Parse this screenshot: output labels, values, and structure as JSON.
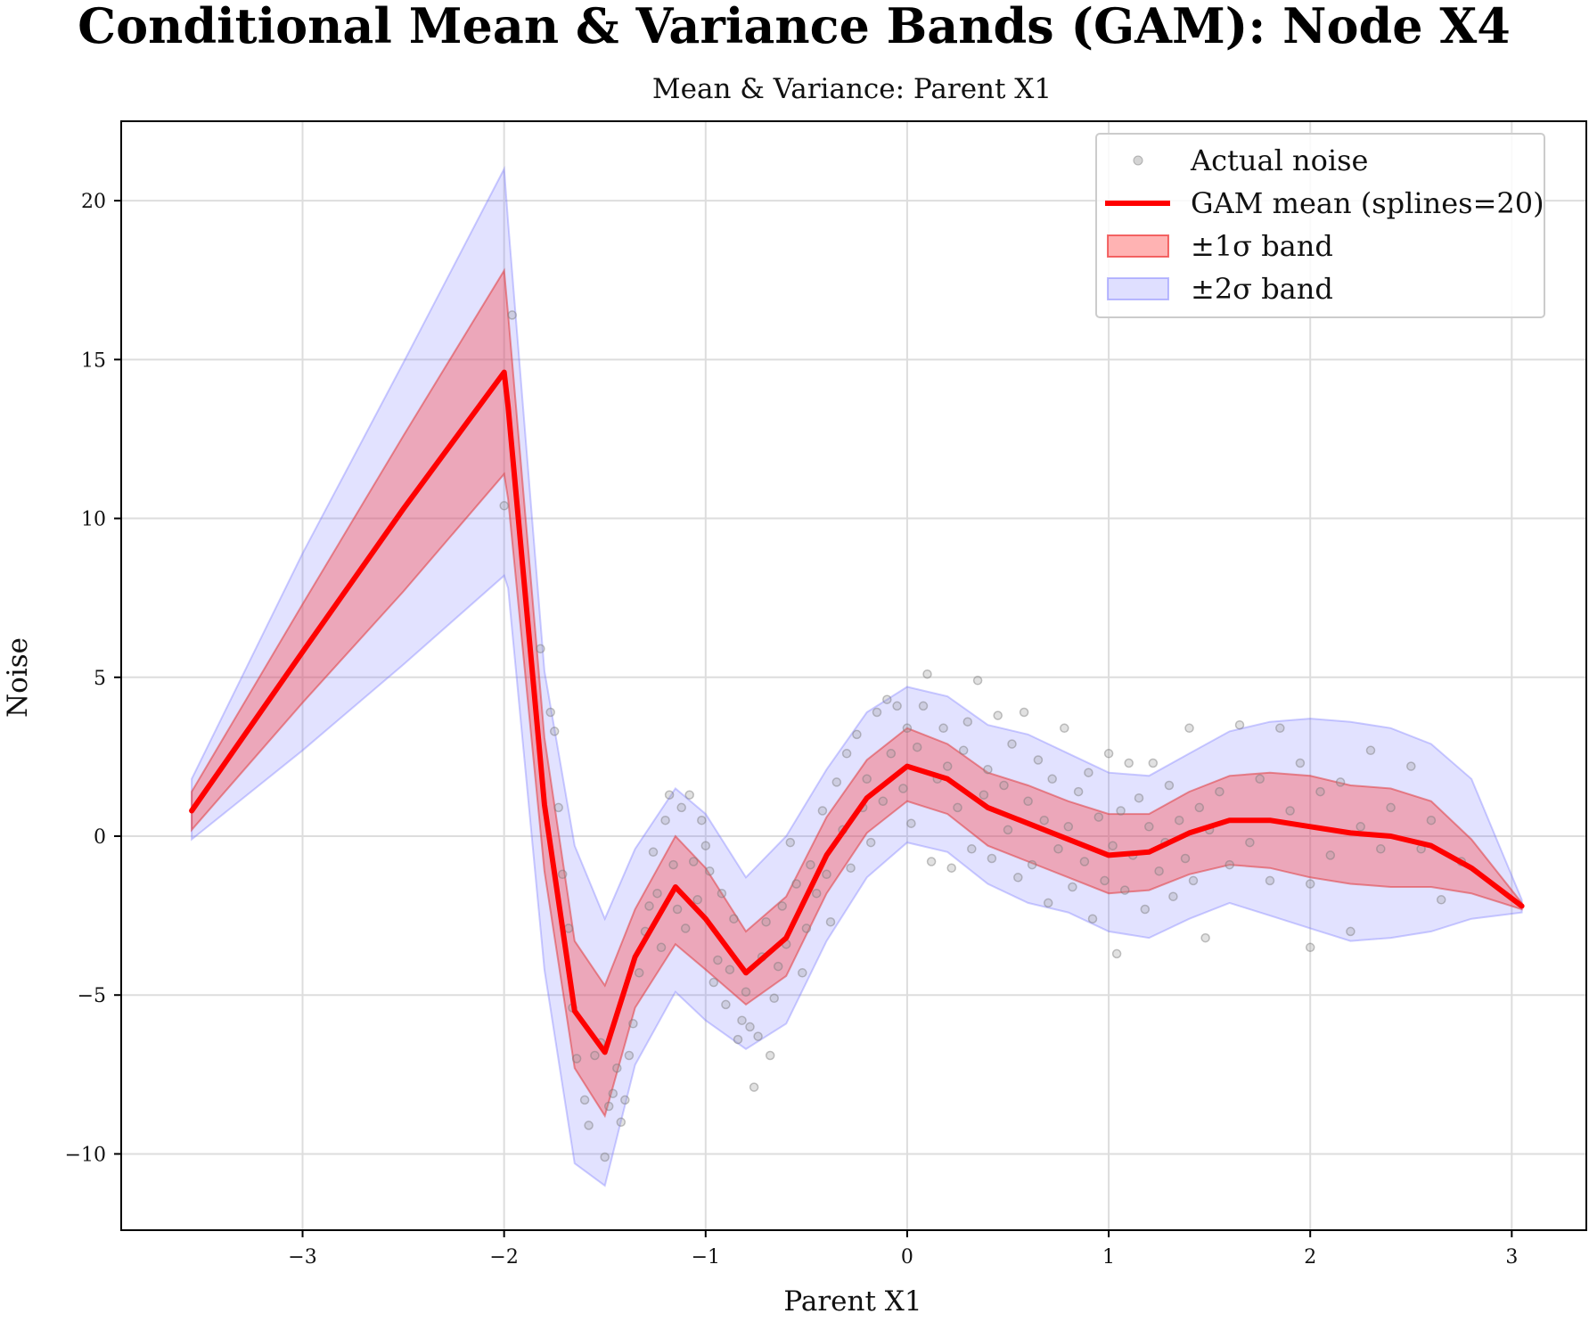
{
  "title": "Conditional Mean & Variance Bands (GAM): Node X4",
  "subtitle": "Mean & Variance: Parent X1",
  "chart_data": {
    "type": "line",
    "xlabel": "Parent X1",
    "ylabel": "Noise",
    "xlim": [
      -3.9,
      3.37
    ],
    "ylim": [
      -12.4,
      22.5
    ],
    "xticks": [
      -3,
      -2,
      -1,
      0,
      1,
      2,
      3
    ],
    "xtick_labels": [
      "−3",
      "−2",
      "−1",
      "0",
      "1",
      "2",
      "3"
    ],
    "yticks": [
      -10,
      -5,
      0,
      5,
      10,
      15,
      20
    ],
    "ytick_labels": [
      "−10",
      "−5",
      "0",
      "5",
      "10",
      "15",
      "20"
    ],
    "grid": true,
    "legend_position": "top-right",
    "legend": [
      {
        "label": "Actual noise",
        "kind": "scatter",
        "color": "#888888"
      },
      {
        "label": "GAM mean (splines=20)",
        "kind": "line",
        "color": "#ff0000"
      },
      {
        "label": "±1σ band",
        "kind": "band",
        "color": "#ff4444"
      },
      {
        "label": "±2σ band",
        "kind": "band",
        "color": "#6666ff"
      }
    ],
    "series": [
      {
        "name": "GAM mean (splines=20)",
        "x": [
          -3.55,
          -3.0,
          -2.5,
          -2.0,
          -1.98,
          -1.8,
          -1.65,
          -1.5,
          -1.35,
          -1.15,
          -1.0,
          -0.8,
          -0.6,
          -0.4,
          -0.2,
          0.0,
          0.2,
          0.4,
          0.6,
          0.8,
          1.0,
          1.2,
          1.4,
          1.6,
          1.8,
          2.0,
          2.2,
          2.4,
          2.6,
          2.8,
          3.05
        ],
        "y": [
          0.8,
          5.8,
          10.3,
          14.6,
          13.5,
          1.0,
          -5.5,
          -6.8,
          -3.8,
          -1.6,
          -2.6,
          -4.3,
          -3.2,
          -0.6,
          1.2,
          2.2,
          1.8,
          0.9,
          0.4,
          -0.1,
          -0.6,
          -0.5,
          0.1,
          0.5,
          0.5,
          0.3,
          0.1,
          0.0,
          -0.3,
          -1.0,
          -2.2
        ]
      },
      {
        "name": "±1σ band",
        "x": [
          -3.55,
          -3.0,
          -2.5,
          -2.0,
          -1.98,
          -1.8,
          -1.65,
          -1.5,
          -1.35,
          -1.15,
          -1.0,
          -0.8,
          -0.6,
          -0.4,
          -0.2,
          0.0,
          0.2,
          0.4,
          0.6,
          0.8,
          1.0,
          1.2,
          1.4,
          1.6,
          1.8,
          2.0,
          2.2,
          2.4,
          2.6,
          2.8,
          3.05
        ],
        "lower": [
          0.2,
          4.2,
          7.7,
          11.4,
          10.6,
          -1.1,
          -7.3,
          -8.8,
          -5.4,
          -3.4,
          -4.2,
          -5.3,
          -4.4,
          -1.8,
          0.1,
          1.1,
          0.7,
          -0.3,
          -0.8,
          -1.3,
          -1.8,
          -1.7,
          -1.2,
          -0.9,
          -1.0,
          -1.3,
          -1.5,
          -1.6,
          -1.6,
          -1.8,
          -2.3
        ],
        "upper": [
          1.4,
          7.3,
          12.6,
          17.8,
          16.4,
          3.1,
          -3.3,
          -4.7,
          -2.3,
          0.0,
          -1.0,
          -3.0,
          -1.9,
          0.6,
          2.4,
          3.4,
          2.9,
          2.0,
          1.6,
          1.1,
          0.7,
          0.7,
          1.4,
          1.9,
          2.0,
          1.9,
          1.6,
          1.5,
          1.1,
          -0.1,
          -2.1
        ]
      },
      {
        "name": "±2σ band",
        "x": [
          -3.55,
          -3.0,
          -2.5,
          -2.0,
          -1.98,
          -1.8,
          -1.65,
          -1.5,
          -1.35,
          -1.15,
          -1.0,
          -0.8,
          -0.6,
          -0.4,
          -0.2,
          0.0,
          0.2,
          0.4,
          0.6,
          0.8,
          1.0,
          1.2,
          1.4,
          1.6,
          1.8,
          2.0,
          2.2,
          2.4,
          2.6,
          2.8,
          3.05
        ],
        "lower": [
          -0.1,
          2.7,
          5.4,
          8.2,
          7.8,
          -4.2,
          -10.3,
          -11.0,
          -7.2,
          -4.9,
          -5.8,
          -6.7,
          -5.9,
          -3.3,
          -1.3,
          -0.2,
          -0.5,
          -1.5,
          -2.1,
          -2.4,
          -3.0,
          -3.2,
          -2.6,
          -2.1,
          -2.5,
          -2.9,
          -3.3,
          -3.2,
          -3.0,
          -2.6,
          -2.4
        ],
        "upper": [
          1.8,
          8.9,
          14.9,
          21.0,
          19.3,
          5.2,
          -0.3,
          -2.6,
          -0.4,
          1.5,
          0.7,
          -1.3,
          0.0,
          2.1,
          3.9,
          4.7,
          4.4,
          3.5,
          3.2,
          2.6,
          2.0,
          1.9,
          2.6,
          3.3,
          3.6,
          3.7,
          3.6,
          3.4,
          2.9,
          1.8,
          -2.0
        ]
      },
      {
        "name": "Actual noise",
        "points": [
          [
            -2.0,
            10.4
          ],
          [
            -1.96,
            16.4
          ],
          [
            -1.82,
            5.9
          ],
          [
            -1.77,
            3.9
          ],
          [
            -1.75,
            3.3
          ],
          [
            -1.73,
            0.9
          ],
          [
            -1.71,
            -1.2
          ],
          [
            -1.68,
            -2.9
          ],
          [
            -1.66,
            -5.4
          ],
          [
            -1.64,
            -7.0
          ],
          [
            -1.6,
            -8.3
          ],
          [
            -1.58,
            -9.1
          ],
          [
            -1.55,
            -6.9
          ],
          [
            -1.52,
            -6.5
          ],
          [
            -1.5,
            -10.1
          ],
          [
            -1.48,
            -8.5
          ],
          [
            -1.46,
            -8.1
          ],
          [
            -1.44,
            -7.3
          ],
          [
            -1.42,
            -9.0
          ],
          [
            -1.4,
            -8.3
          ],
          [
            -1.38,
            -6.9
          ],
          [
            -1.36,
            -5.9
          ],
          [
            -1.33,
            -4.3
          ],
          [
            -1.3,
            -3.0
          ],
          [
            -1.28,
            -2.2
          ],
          [
            -1.26,
            -0.5
          ],
          [
            -1.24,
            -1.8
          ],
          [
            -1.22,
            -3.5
          ],
          [
            -1.2,
            0.5
          ],
          [
            -1.18,
            1.3
          ],
          [
            -1.16,
            -0.9
          ],
          [
            -1.14,
            -2.3
          ],
          [
            -1.12,
            0.9
          ],
          [
            -1.1,
            -2.9
          ],
          [
            -1.08,
            1.3
          ],
          [
            -1.06,
            -0.8
          ],
          [
            -1.04,
            -2.0
          ],
          [
            -1.02,
            0.5
          ],
          [
            -1.0,
            -0.3
          ],
          [
            -0.98,
            -1.1
          ],
          [
            -0.96,
            -4.6
          ],
          [
            -0.94,
            -3.9
          ],
          [
            -0.92,
            -1.8
          ],
          [
            -0.9,
            -5.3
          ],
          [
            -0.88,
            -4.2
          ],
          [
            -0.86,
            -2.6
          ],
          [
            -0.84,
            -6.4
          ],
          [
            -0.82,
            -5.8
          ],
          [
            -0.8,
            -4.9
          ],
          [
            -0.78,
            -6.0
          ],
          [
            -0.76,
            -7.9
          ],
          [
            -0.74,
            -6.3
          ],
          [
            -0.72,
            -3.8
          ],
          [
            -0.7,
            -2.7
          ],
          [
            -0.68,
            -6.9
          ],
          [
            -0.66,
            -5.1
          ],
          [
            -0.64,
            -4.1
          ],
          [
            -0.62,
            -2.2
          ],
          [
            -0.6,
            -3.4
          ],
          [
            -0.58,
            -0.2
          ],
          [
            -0.55,
            -1.5
          ],
          [
            -0.52,
            -4.3
          ],
          [
            -0.5,
            -2.9
          ],
          [
            -0.48,
            -0.9
          ],
          [
            -0.45,
            -1.8
          ],
          [
            -0.42,
            0.8
          ],
          [
            -0.4,
            -1.2
          ],
          [
            -0.38,
            -2.7
          ],
          [
            -0.35,
            1.7
          ],
          [
            -0.32,
            0.2
          ],
          [
            -0.3,
            2.6
          ],
          [
            -0.28,
            -1.0
          ],
          [
            -0.25,
            3.2
          ],
          [
            -0.22,
            0.9
          ],
          [
            -0.2,
            1.8
          ],
          [
            -0.18,
            -0.2
          ],
          [
            -0.15,
            3.9
          ],
          [
            -0.12,
            1.1
          ],
          [
            -0.1,
            4.3
          ],
          [
            -0.08,
            2.6
          ],
          [
            -0.05,
            4.1
          ],
          [
            -0.02,
            1.5
          ],
          [
            0.0,
            3.4
          ],
          [
            0.02,
            0.4
          ],
          [
            0.05,
            2.8
          ],
          [
            0.08,
            4.1
          ],
          [
            0.1,
            5.1
          ],
          [
            0.12,
            -0.8
          ],
          [
            0.15,
            1.8
          ],
          [
            0.18,
            3.4
          ],
          [
            0.2,
            2.2
          ],
          [
            0.22,
            -1.0
          ],
          [
            0.25,
            0.9
          ],
          [
            0.28,
            2.7
          ],
          [
            0.3,
            3.6
          ],
          [
            0.32,
            -0.4
          ],
          [
            0.35,
            4.9
          ],
          [
            0.38,
            1.3
          ],
          [
            0.4,
            2.1
          ],
          [
            0.42,
            -0.7
          ],
          [
            0.45,
            3.8
          ],
          [
            0.48,
            1.6
          ],
          [
            0.5,
            0.2
          ],
          [
            0.52,
            2.9
          ],
          [
            0.55,
            -1.3
          ],
          [
            0.58,
            3.9
          ],
          [
            0.6,
            1.1
          ],
          [
            0.62,
            -0.9
          ],
          [
            0.65,
            2.4
          ],
          [
            0.68,
            0.5
          ],
          [
            0.7,
            -2.1
          ],
          [
            0.72,
            1.8
          ],
          [
            0.75,
            -0.4
          ],
          [
            0.78,
            3.4
          ],
          [
            0.8,
            0.3
          ],
          [
            0.82,
            -1.6
          ],
          [
            0.85,
            1.4
          ],
          [
            0.88,
            -0.8
          ],
          [
            0.9,
            2.0
          ],
          [
            0.92,
            -2.6
          ],
          [
            0.95,
            0.6
          ],
          [
            0.98,
            -1.4
          ],
          [
            1.0,
            2.6
          ],
          [
            1.02,
            -0.3
          ],
          [
            1.04,
            -3.7
          ],
          [
            1.06,
            0.8
          ],
          [
            1.08,
            -1.7
          ],
          [
            1.1,
            2.3
          ],
          [
            1.12,
            -0.6
          ],
          [
            1.15,
            1.2
          ],
          [
            1.18,
            -2.3
          ],
          [
            1.2,
            0.3
          ],
          [
            1.22,
            2.3
          ],
          [
            1.25,
            -1.1
          ],
          [
            1.28,
            -0.2
          ],
          [
            1.3,
            1.6
          ],
          [
            1.32,
            -1.9
          ],
          [
            1.35,
            0.5
          ],
          [
            1.38,
            -0.7
          ],
          [
            1.4,
            3.4
          ],
          [
            1.42,
            -1.4
          ],
          [
            1.45,
            0.9
          ],
          [
            1.48,
            -3.2
          ],
          [
            1.5,
            0.2
          ],
          [
            1.55,
            1.4
          ],
          [
            1.6,
            -0.9
          ],
          [
            1.65,
            3.5
          ],
          [
            1.7,
            -0.2
          ],
          [
            1.75,
            1.8
          ],
          [
            1.8,
            -1.4
          ],
          [
            1.85,
            3.4
          ],
          [
            1.9,
            0.8
          ],
          [
            1.95,
            2.3
          ],
          [
            2.0,
            -1.5
          ],
          [
            2.0,
            -3.5
          ],
          [
            2.05,
            1.4
          ],
          [
            2.1,
            -0.6
          ],
          [
            2.15,
            1.7
          ],
          [
            2.2,
            -3.0
          ],
          [
            2.25,
            0.3
          ],
          [
            2.3,
            2.7
          ],
          [
            2.35,
            -0.4
          ],
          [
            2.4,
            0.9
          ],
          [
            2.5,
            2.2
          ],
          [
            2.55,
            -0.4
          ],
          [
            2.6,
            0.5
          ],
          [
            2.65,
            -2.0
          ],
          [
            2.75,
            -0.8
          ]
        ]
      }
    ]
  }
}
